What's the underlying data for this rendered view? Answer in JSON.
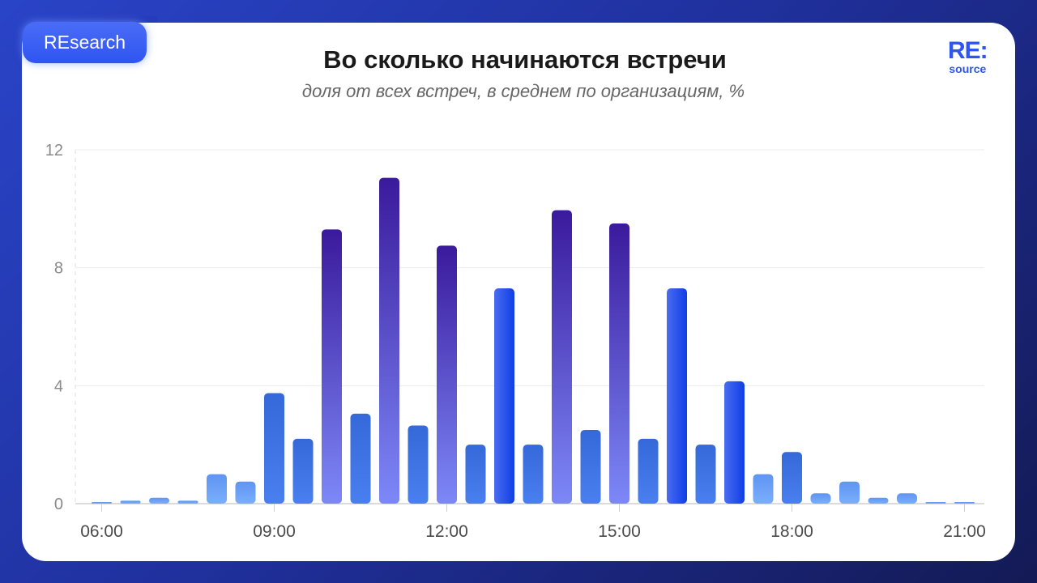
{
  "badge": "REsearch",
  "logo": {
    "top": "RE:",
    "bottom": "source"
  },
  "chart_data": {
    "type": "bar",
    "title": "Во сколько начинаются встречи",
    "subtitle": "доля от всех встреч, в среднем по организациям, %",
    "xlabel": "",
    "ylabel": "",
    "ylim": [
      0,
      12
    ],
    "yticks": [
      "0",
      "4",
      "8",
      "12"
    ],
    "xticks": [
      "06:00",
      "09:00",
      "12:00",
      "15:00",
      "18:00",
      "21:00"
    ],
    "grid": true,
    "categories": [
      "06:00",
      "06:30",
      "07:00",
      "07:30",
      "08:00",
      "08:30",
      "09:00",
      "09:30",
      "10:00",
      "10:30",
      "11:00",
      "11:30",
      "12:00",
      "12:30",
      "13:00",
      "13:30",
      "14:00",
      "14:30",
      "15:00",
      "15:30",
      "16:00",
      "16:30",
      "17:00",
      "17:30",
      "18:00",
      "18:30",
      "19:00",
      "19:30",
      "20:00",
      "20:30",
      "21:00"
    ],
    "values": [
      0.05,
      0.1,
      0.2,
      0.1,
      1.0,
      0.75,
      3.75,
      2.2,
      9.3,
      3.05,
      11.05,
      2.65,
      8.75,
      2.0,
      7.3,
      2.0,
      9.95,
      2.5,
      9.5,
      2.2,
      7.3,
      2.0,
      4.15,
      1.0,
      1.75,
      0.35,
      0.75,
      0.2,
      0.35,
      0.05,
      0.05
    ],
    "bar_styles": [
      "light",
      "light",
      "light",
      "light",
      "light",
      "light",
      "mid",
      "mid",
      "purple",
      "mid",
      "purple",
      "mid",
      "purple",
      "mid",
      "blue",
      "mid",
      "purple",
      "mid",
      "purple",
      "mid",
      "blue",
      "mid",
      "blue",
      "light",
      "mid",
      "light",
      "light",
      "light",
      "light",
      "light",
      "light"
    ],
    "colors": {
      "purple_top": "#3a1a9c",
      "purple_bottom": "#7d88f7",
      "blue_left": "#4a6cf0",
      "blue_right": "#0f3ee6",
      "mid_top": "#3568d8",
      "mid_bottom": "#4a7ff0",
      "light_top": "#5f94f2",
      "light_bottom": "#7aaefc"
    }
  }
}
